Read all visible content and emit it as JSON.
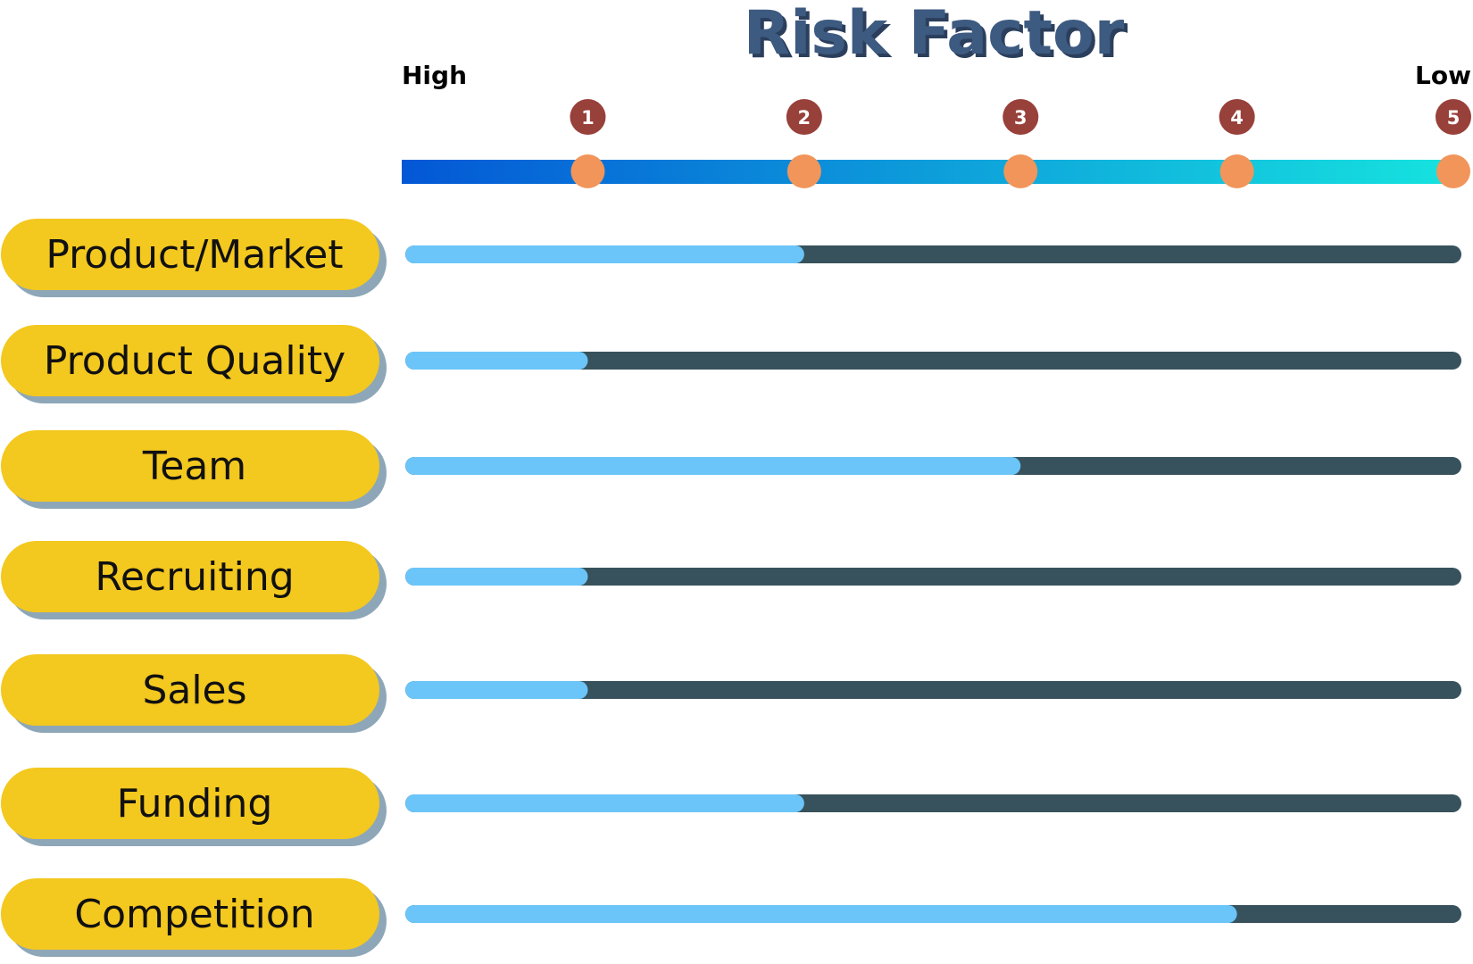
{
  "chart_data": {
    "type": "bar",
    "title": "Risk Factor",
    "scale_left_label": "High",
    "scale_right_label": "Low",
    "scale_ticks": [
      "1",
      "2",
      "3",
      "4",
      "5"
    ],
    "xlim": [
      0.14,
      5
    ],
    "categories": [
      "Product/Market",
      "Product Quality",
      "Team",
      "Recruiting",
      "Sales",
      "Funding",
      "Competition"
    ],
    "values": [
      2,
      1,
      3,
      1,
      1,
      2,
      4
    ]
  },
  "colors": {
    "title": "#3d5a80",
    "title_shadow": "#2b3f5c",
    "scale_start": "#0457d6",
    "scale_end": "#16e3df",
    "tick_dot": "#f1955a",
    "tick_badge": "#98403a",
    "pill_fill": "#f3c81f",
    "pill_shadow": "#8ea7b8",
    "bar_fill": "#6bc5f9",
    "bar_track": "#37525c",
    "label_text": "#111111"
  }
}
